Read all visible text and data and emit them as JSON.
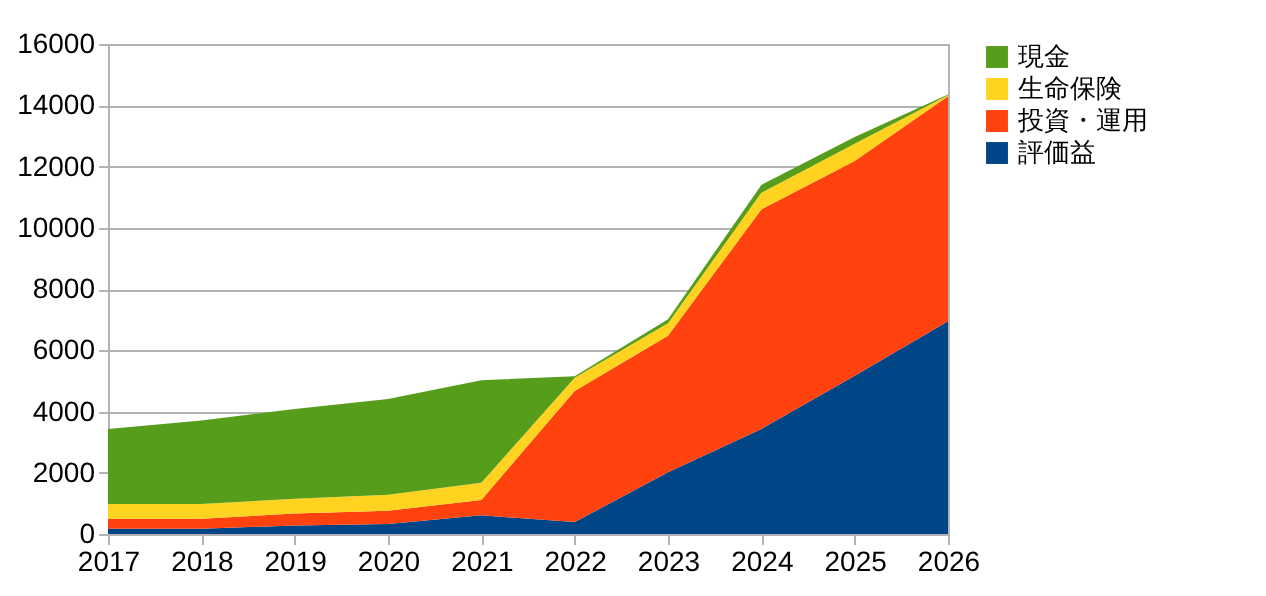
{
  "chart_data": {
    "type": "area",
    "stacked": true,
    "categories": [
      "2017",
      "2018",
      "2019",
      "2020",
      "2021",
      "2022",
      "2023",
      "2024",
      "2025",
      "2026"
    ],
    "series": [
      {
        "name": "評価益",
        "color": "#004586",
        "values": [
          170,
          170,
          280,
          330,
          610,
          390,
          2020,
          3430,
          5170,
          6950
        ]
      },
      {
        "name": "投資・運用",
        "color": "#ff420e",
        "values": [
          330,
          330,
          390,
          430,
          500,
          4280,
          4450,
          7170,
          7010,
          7340
        ]
      },
      {
        "name": "生命保険",
        "color": "#ffd320",
        "values": [
          480,
          480,
          480,
          520,
          560,
          430,
          410,
          540,
          560,
          40
        ]
      },
      {
        "name": "現金",
        "color": "#579d1c",
        "values": [
          2450,
          2730,
          2930,
          3130,
          3350,
          50,
          130,
          260,
          220,
          20
        ]
      }
    ],
    "ylim": [
      0,
      16000
    ],
    "yticks": [
      0,
      2000,
      4000,
      6000,
      8000,
      10000,
      12000,
      14000,
      16000
    ],
    "grid": "y",
    "legend": "right"
  }
}
